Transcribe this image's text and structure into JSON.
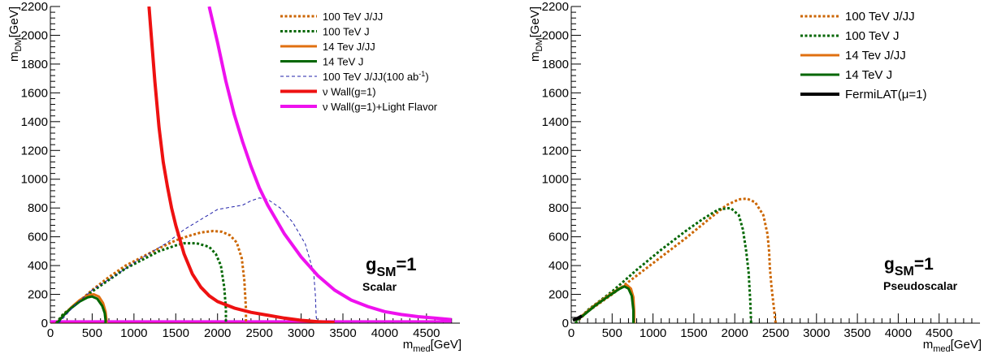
{
  "chart_data": [
    {
      "type": "line",
      "xlabel": "m",
      "xlabel_sub": "med",
      "xlabel_unit": "[GeV]",
      "ylabel": "m",
      "ylabel_sub": "DM",
      "ylabel_unit": "[GeV]",
      "xlim": [
        0,
        4900
      ],
      "ylim": [
        0,
        2200
      ],
      "xticks": [
        0,
        500,
        1000,
        1500,
        2000,
        2500,
        3000,
        3500,
        4000,
        4500
      ],
      "yticks": [
        0,
        200,
        400,
        600,
        800,
        1000,
        1200,
        1400,
        1600,
        1800,
        2000,
        2200
      ],
      "legend_position": "top-right",
      "annotation_main": "g",
      "annotation_sub": "SM",
      "annotation_eq": "=1",
      "annotation_model": "Scalar",
      "series": [
        {
          "name": "100 TeV J/JJ",
          "color": "#cc6600",
          "style": "dotted",
          "width": 3,
          "x": [
            70,
            150,
            300,
            500,
            700,
            900,
            1100,
            1300,
            1500,
            1650,
            1800,
            1950,
            2050,
            2150,
            2230,
            2290,
            2320,
            2340,
            2340
          ],
          "y": [
            0,
            60,
            130,
            230,
            320,
            400,
            460,
            520,
            575,
            605,
            630,
            640,
            635,
            610,
            560,
            450,
            300,
            100,
            0
          ]
        },
        {
          "name": "100 TeV J",
          "color": "#006600",
          "style": "dotted",
          "width": 3,
          "x": [
            70,
            150,
            300,
            500,
            700,
            900,
            1100,
            1300,
            1500,
            1600,
            1750,
            1900,
            1980,
            2040,
            2080,
            2100,
            2100
          ],
          "y": [
            0,
            60,
            130,
            220,
            300,
            380,
            440,
            500,
            540,
            555,
            555,
            530,
            480,
            400,
            250,
            100,
            0
          ]
        },
        {
          "name": "14 Tev J/JJ",
          "color": "#e07010",
          "style": "solid",
          "width": 3,
          "x": [
            80,
            150,
            250,
            350,
            450,
            520,
            580,
            630,
            660,
            670,
            670
          ],
          "y": [
            0,
            50,
            110,
            160,
            195,
            200,
            185,
            140,
            80,
            30,
            0
          ]
        },
        {
          "name": "14 TeV J",
          "color": "#006600",
          "style": "solid",
          "width": 3,
          "x": [
            80,
            150,
            250,
            350,
            450,
            500,
            560,
            620,
            650,
            660,
            660
          ],
          "y": [
            0,
            50,
            105,
            150,
            180,
            185,
            170,
            120,
            70,
            20,
            0
          ]
        },
        {
          "name": "100 TeV J/JJ(100 ab",
          "name_sup": "-1",
          "name_tail": ")",
          "color": "#2222aa",
          "style": "dashed",
          "width": 1,
          "x": [
            100,
            300,
            500,
            800,
            1000,
            1200,
            1400,
            1600,
            1800,
            2000,
            2300,
            2400,
            2500,
            2600,
            2750,
            2900,
            3050,
            3150,
            3170,
            3180,
            3190
          ],
          "y": [
            0,
            130,
            230,
            340,
            420,
            490,
            560,
            650,
            720,
            790,
            820,
            850,
            870,
            860,
            800,
            700,
            550,
            350,
            200,
            50,
            0
          ]
        },
        {
          "name": "ν Wall(g=1)",
          "color": "#ee1111",
          "style": "solid",
          "width": 4,
          "x": [
            1180,
            1200,
            1250,
            1300,
            1350,
            1400,
            1450,
            1500,
            1600,
            1700,
            1800,
            1900,
            2000,
            2200,
            2400,
            2600,
            2800,
            3000,
            3200,
            3400
          ],
          "y": [
            2200,
            2050,
            1680,
            1360,
            1120,
            950,
            800,
            680,
            480,
            340,
            250,
            190,
            150,
            105,
            75,
            55,
            35,
            20,
            10,
            5
          ]
        },
        {
          "name": "ν Wall(g=1)+Light Flavor",
          "color": "#ee11ee",
          "style": "solid",
          "width": 4,
          "x": [
            1900,
            2000,
            2100,
            2200,
            2300,
            2400,
            2500,
            2600,
            2800,
            3000,
            3200,
            3400,
            3600,
            3800,
            4000,
            4200,
            4400,
            4600,
            4800
          ],
          "y": [
            2200,
            1950,
            1680,
            1450,
            1260,
            1090,
            940,
            820,
            620,
            460,
            330,
            230,
            160,
            115,
            80,
            60,
            45,
            35,
            25
          ]
        }
      ],
      "floor_lines": [
        {
          "color": "#ee1111",
          "width": 3,
          "x": [
            0,
            3400
          ],
          "y": [
            10,
            10
          ]
        },
        {
          "color": "#ee11ee",
          "width": 3,
          "x": [
            0,
            4800
          ],
          "y": [
            12,
            12
          ]
        }
      ]
    },
    {
      "type": "line",
      "xlabel": "m",
      "xlabel_sub": "med",
      "xlabel_unit": "[GeV]",
      "ylabel": "m",
      "ylabel_sub": "DM",
      "ylabel_unit": "[GeV]",
      "xlim": [
        0,
        5000
      ],
      "ylim": [
        0,
        2200
      ],
      "xticks": [
        0,
        500,
        1000,
        1500,
        2000,
        2500,
        3000,
        3500,
        4000,
        4500
      ],
      "yticks": [
        0,
        200,
        400,
        600,
        800,
        1000,
        1200,
        1400,
        1600,
        1800,
        2000,
        2200
      ],
      "legend_position": "top-right",
      "annotation_main": "g",
      "annotation_sub": "SM",
      "annotation_eq": "=1",
      "annotation_model": "Pseudoscalar",
      "series": [
        {
          "name": "100 TeV J/JJ",
          "color": "#cc6600",
          "style": "dotted",
          "width": 3,
          "x": [
            50,
            200,
            500,
            800,
            1100,
            1400,
            1700,
            1900,
            2050,
            2150,
            2250,
            2350,
            2400,
            2420,
            2430,
            2450,
            2480,
            2500
          ],
          "y": [
            0,
            80,
            200,
            330,
            460,
            590,
            730,
            820,
            860,
            865,
            840,
            750,
            620,
            500,
            380,
            250,
            100,
            0
          ]
        },
        {
          "name": "100 TeV J",
          "color": "#006600",
          "style": "dotted",
          "width": 3,
          "x": [
            50,
            200,
            500,
            800,
            1100,
            1400,
            1600,
            1800,
            1950,
            2050,
            2100,
            2140,
            2170,
            2190,
            2200
          ],
          "y": [
            0,
            90,
            220,
            370,
            510,
            640,
            720,
            790,
            800,
            750,
            650,
            500,
            350,
            150,
            0
          ]
        },
        {
          "name": "14 Tev J/JJ",
          "color": "#e07010",
          "style": "solid",
          "width": 3,
          "x": [
            60,
            150,
            300,
            450,
            600,
            680,
            730,
            760,
            770,
            770
          ],
          "y": [
            20,
            60,
            130,
            190,
            245,
            265,
            240,
            180,
            80,
            0
          ]
        },
        {
          "name": "14 TeV J",
          "color": "#006600",
          "style": "solid",
          "width": 3,
          "x": [
            60,
            150,
            300,
            450,
            580,
            650,
            700,
            740,
            760,
            760
          ],
          "y": [
            20,
            55,
            125,
            185,
            235,
            255,
            240,
            190,
            90,
            0
          ]
        },
        {
          "name": "FermiLAT(μ=1)",
          "color": "#000000",
          "style": "solid",
          "width": 4,
          "x": [
            20,
            60,
            100,
            130
          ],
          "y": [
            20,
            30,
            40,
            50
          ]
        }
      ]
    }
  ]
}
